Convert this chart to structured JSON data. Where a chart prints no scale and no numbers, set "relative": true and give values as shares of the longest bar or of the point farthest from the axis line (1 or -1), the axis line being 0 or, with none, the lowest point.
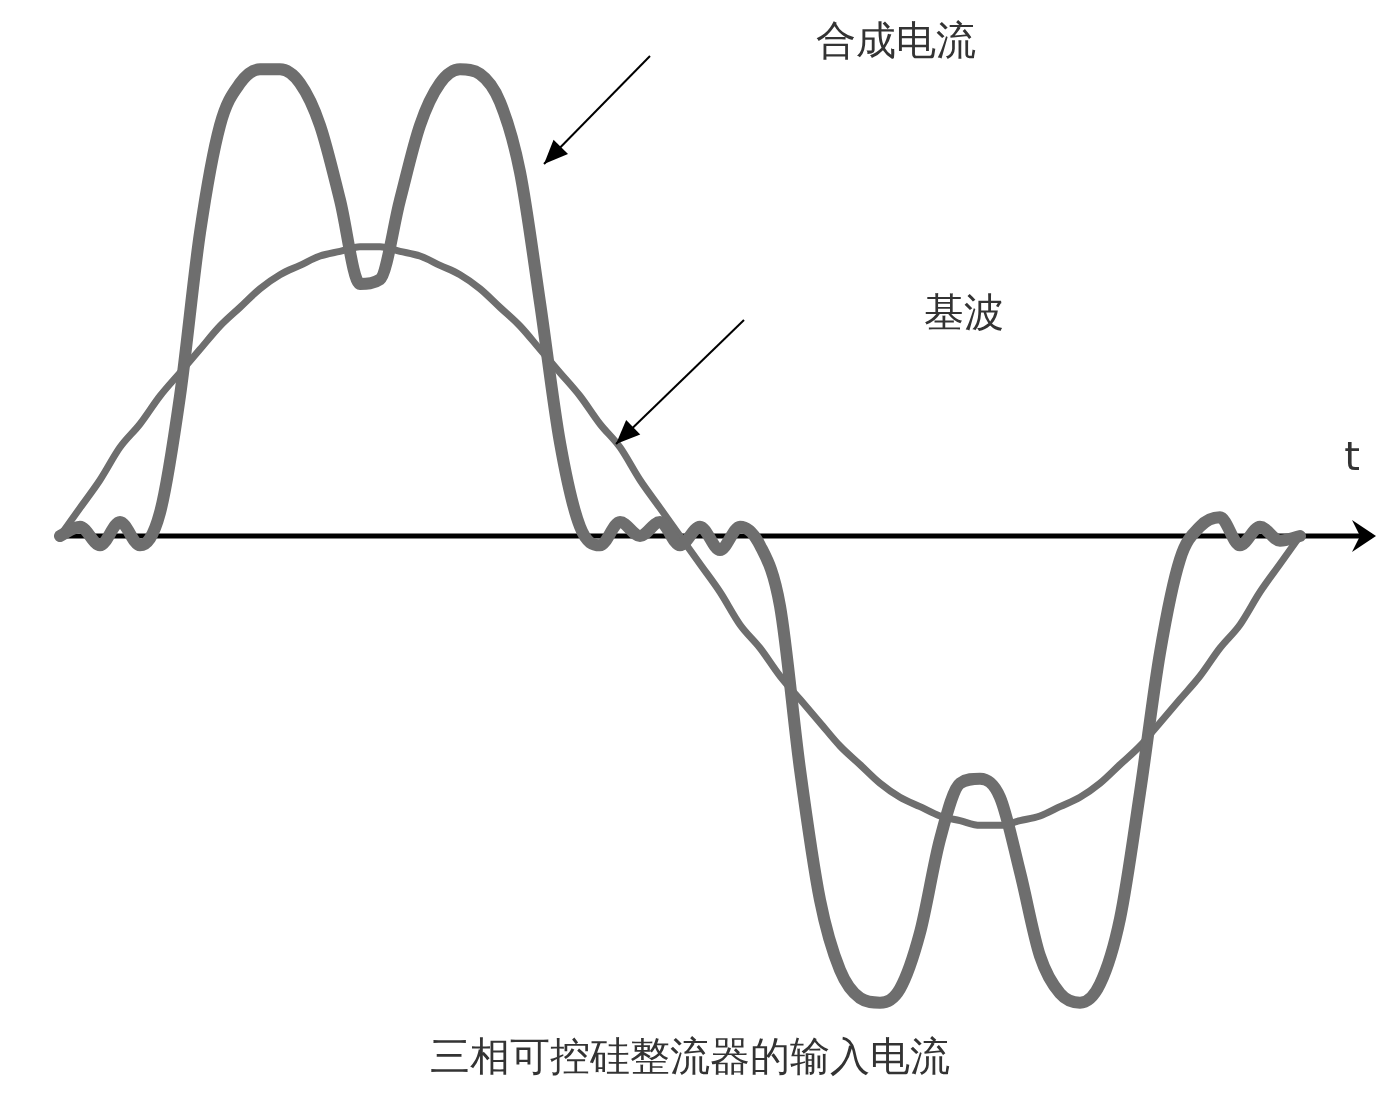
{
  "chart_data": {
    "type": "line",
    "relative": true,
    "xlabel": "t",
    "legend": false,
    "marker": "none",
    "line_style": "solid",
    "categories": [
      null,
      null,
      null,
      null,
      null,
      null,
      null,
      null,
      null,
      null,
      null,
      null,
      null,
      null,
      null,
      null,
      null,
      null,
      null,
      null,
      null,
      null,
      null,
      null,
      null,
      null,
      null,
      null,
      null,
      null,
      null,
      null,
      null,
      null,
      null,
      null,
      null,
      null,
      null,
      null,
      null,
      null,
      null,
      null,
      null,
      null,
      null,
      null,
      null,
      null,
      null,
      null,
      null,
      null,
      null,
      null,
      null,
      null,
      null,
      null,
      null,
      null,
      null
    ],
    "series": [
      {
        "color": "#6e6e6e",
        "values": [
          0,
          0.02,
          -0.02,
          0.03,
          -0.02,
          0.05,
          0.3,
          0.65,
          0.88,
          0.97,
          1.0,
          1.0,
          0.97,
          0.88,
          0.72,
          0.54,
          0.55,
          0.72,
          0.88,
          0.97,
          1.0,
          0.99,
          0.93,
          0.78,
          0.5,
          0.2,
          0.02,
          -0.02,
          0.03,
          0,
          0.03,
          -0.02,
          0.02,
          -0.03,
          0.02,
          -0.02,
          -0.15,
          -0.5,
          -0.78,
          -0.93,
          -0.99,
          -1.0,
          -0.97,
          -0.85,
          -0.65,
          -0.53,
          -0.52,
          -0.56,
          -0.72,
          -0.9,
          -0.98,
          -1.0,
          -0.96,
          -0.82,
          -0.55,
          -0.25,
          -0.05,
          0.02,
          0.04,
          -0.02,
          0.02,
          -0.01,
          0
        ]
      },
      {
        "color": "#6e6e6e",
        "values": [
          0,
          0.06,
          0.12,
          0.19,
          0.24,
          0.3,
          0.35,
          0.4,
          0.45,
          0.49,
          0.53,
          0.56,
          0.58,
          0.6,
          0.61,
          0.62,
          0.62,
          0.61,
          0.6,
          0.58,
          0.56,
          0.53,
          0.49,
          0.45,
          0.4,
          0.35,
          0.3,
          0.24,
          0.19,
          0.12,
          0.06,
          0,
          -0.06,
          -0.12,
          -0.19,
          -0.24,
          -0.3,
          -0.35,
          -0.4,
          -0.45,
          -0.49,
          -0.53,
          -0.56,
          -0.58,
          -0.6,
          -0.61,
          -0.62,
          -0.62,
          -0.61,
          -0.6,
          -0.58,
          -0.56,
          -0.53,
          -0.49,
          -0.45,
          -0.4,
          -0.35,
          -0.3,
          -0.24,
          -0.19,
          -0.12,
          -0.06,
          0
        ]
      }
    ],
    "annotations": [
      "合成电流",
      "基波",
      "三相可控硅整流器的输入电流"
    ]
  }
}
